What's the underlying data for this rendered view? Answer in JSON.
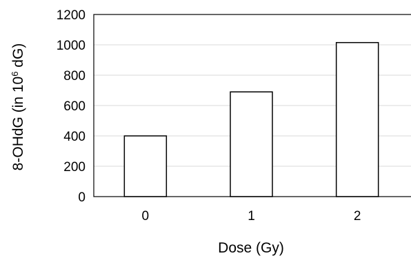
{
  "chart_data": {
    "type": "bar",
    "categories": [
      "0",
      "1",
      "2"
    ],
    "values": [
      400,
      690,
      1015
    ],
    "xlabel": "Dose (Gy)",
    "ylabel": {
      "prefix": "8-OHdG (in 10",
      "superscript": "6",
      "suffix": " dG)"
    },
    "ylim": [
      0,
      1200
    ],
    "yticks": [
      "0",
      "200",
      "400",
      "600",
      "800",
      "1000",
      "1200"
    ],
    "grid": true,
    "legend": "none"
  }
}
